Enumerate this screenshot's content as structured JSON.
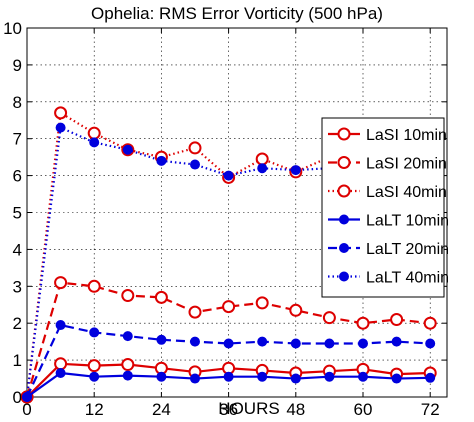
{
  "chart_data": {
    "type": "line",
    "title": "Ophelia: RMS Error Vorticity (500 hPa)",
    "xlabel": "HOURS",
    "ylabel": "",
    "xlim": [
      0,
      75
    ],
    "ylim": [
      0,
      10
    ],
    "xticks": [
      0,
      12,
      24,
      36,
      48,
      60,
      72
    ],
    "yticks": [
      0,
      1,
      2,
      3,
      4,
      5,
      6,
      7,
      8,
      9,
      10
    ],
    "grid": true,
    "legend_position": "right",
    "x": [
      0,
      6,
      12,
      18,
      24,
      30,
      36,
      42,
      48,
      54,
      60,
      66,
      72
    ],
    "series": [
      {
        "name": "LaSI 10min",
        "color": "#dd0000",
        "line": "solid",
        "marker": "open-circle",
        "values": [
          0,
          0.9,
          0.85,
          0.88,
          0.78,
          0.68,
          0.78,
          0.72,
          0.65,
          0.7,
          0.75,
          0.62,
          0.65
        ]
      },
      {
        "name": "LaSI 20min",
        "color": "#dd0000",
        "line": "dashed",
        "marker": "open-circle",
        "values": [
          0,
          3.1,
          3.0,
          2.75,
          2.7,
          2.3,
          2.45,
          2.55,
          2.35,
          2.15,
          2.0,
          2.1,
          2.0
        ]
      },
      {
        "name": "LaSI 40min",
        "color": "#dd0000",
        "line": "dotted",
        "marker": "open-circle",
        "values": [
          0,
          7.7,
          7.15,
          6.7,
          6.5,
          6.75,
          5.95,
          6.45,
          6.1,
          6.5,
          6.0,
          6.2,
          5.8
        ]
      },
      {
        "name": "LaLT 10min",
        "color": "#0000dd",
        "line": "solid",
        "marker": "filled-circle",
        "values": [
          0,
          0.65,
          0.55,
          0.58,
          0.55,
          0.5,
          0.55,
          0.55,
          0.5,
          0.55,
          0.55,
          0.5,
          0.52
        ]
      },
      {
        "name": "LaLT 20min",
        "color": "#0000dd",
        "line": "dashed",
        "marker": "filled-circle",
        "values": [
          0,
          1.95,
          1.75,
          1.65,
          1.55,
          1.5,
          1.45,
          1.5,
          1.45,
          1.45,
          1.45,
          1.5,
          1.45
        ]
      },
      {
        "name": "LaLT 40min",
        "color": "#0000dd",
        "line": "dotted",
        "marker": "filled-circle",
        "values": [
          0,
          7.3,
          6.9,
          6.7,
          6.4,
          6.3,
          6.0,
          6.2,
          6.15,
          6.2,
          6.05,
          6.1,
          5.85
        ]
      }
    ]
  }
}
